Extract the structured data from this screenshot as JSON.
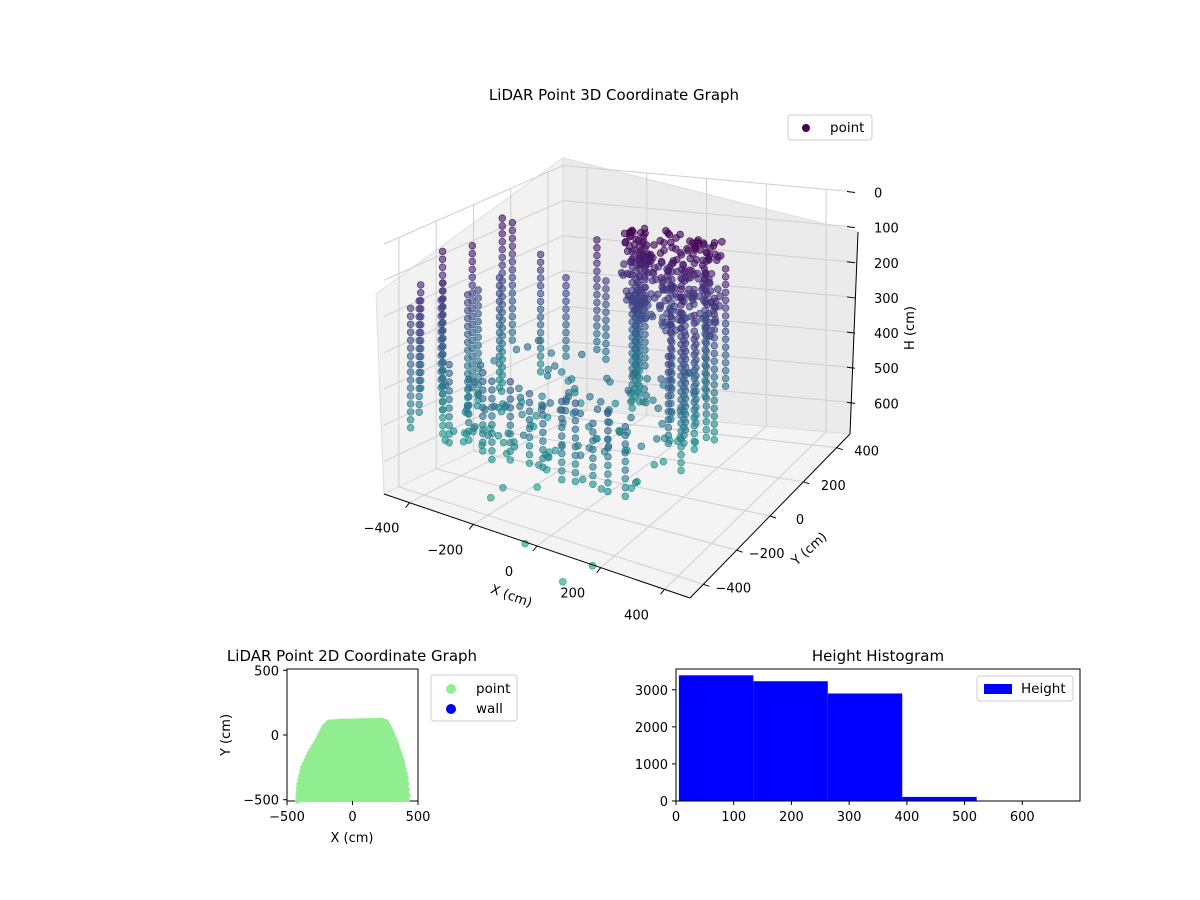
{
  "figure": {
    "background": "#ffffff"
  },
  "chart_data": [
    {
      "type": "scatter",
      "projection": "3d",
      "title": "LiDAR Point 3D Coordinate Graph",
      "xlabel": "X (cm)",
      "ylabel": "Y (cm)",
      "zlabel": "H (cm)",
      "xticks": [
        "−400",
        "−200",
        "0",
        "200",
        "400"
      ],
      "yticks": [
        "−400",
        "−200",
        "0",
        "200",
        "400"
      ],
      "zticks": [
        "0",
        "100",
        "200",
        "300",
        "400",
        "500",
        "600"
      ],
      "xlim": [
        -480,
        480
      ],
      "ylim": [
        -480,
        480
      ],
      "zlim": [
        690,
        0
      ],
      "z_inverted": true,
      "grid": true,
      "colormap": "viridis",
      "series": [
        {
          "name": "point",
          "marker_color": "#440154",
          "description_values": {
            "wall_x_range": [
              -420,
              300
            ],
            "wall_y_range": [
              -480,
              110
            ],
            "height_range": [
              0,
              520
            ],
            "samples": [
              {
                "x": -410,
                "y": -100,
                "h": 80
              },
              {
                "x": -400,
                "y": -300,
                "h": 250
              },
              {
                "x": -300,
                "y": 100,
                "h": 100
              },
              {
                "x": -100,
                "y": 105,
                "h": 20
              },
              {
                "x": 100,
                "y": 100,
                "h": 10
              },
              {
                "x": 250,
                "y": 60,
                "h": 60
              },
              {
                "x": 280,
                "y": -50,
                "h": 150
              },
              {
                "x": 0,
                "y": -470,
                "h": 300
              },
              {
                "x": -150,
                "y": -460,
                "h": 400
              },
              {
                "x": 200,
                "y": -400,
                "h": 450
              }
            ]
          }
        }
      ],
      "legend": {
        "position": "upper right",
        "entries": [
          "point"
        ]
      }
    },
    {
      "type": "scatter",
      "title": "LiDAR Point 2D Coordinate Graph",
      "xlabel": "X (cm)",
      "ylabel": "Y (cm)",
      "xlim": [
        -500,
        500
      ],
      "ylim": [
        -510,
        510
      ],
      "xticks": [
        "−500",
        "0",
        "500"
      ],
      "yticks": [
        "−500",
        "0",
        "500"
      ],
      "series": [
        {
          "name": "point",
          "color": "#90ee90",
          "outline": [
            [
              -420,
              -510
            ],
            [
              -410,
              -380
            ],
            [
              -380,
              -250
            ],
            [
              -330,
              -140
            ],
            [
              -270,
              -40
            ],
            [
              -220,
              60
            ],
            [
              -180,
              100
            ],
            [
              -80,
              108
            ],
            [
              40,
              110
            ],
            [
              140,
              112
            ],
            [
              220,
              115
            ],
            [
              260,
              100
            ],
            [
              300,
              20
            ],
            [
              340,
              -80
            ],
            [
              380,
              -200
            ],
            [
              410,
              -330
            ],
            [
              430,
              -510
            ]
          ]
        },
        {
          "name": "wall",
          "color": "#0000ff",
          "points": []
        }
      ],
      "legend": {
        "position": "outside right",
        "entries": [
          "point",
          "wall"
        ]
      }
    },
    {
      "type": "bar",
      "title": "Height Histogram",
      "xlim": [
        0,
        700
      ],
      "ylim": [
        0,
        3560
      ],
      "xticks": [
        "0",
        "100",
        "200",
        "300",
        "400",
        "500",
        "600"
      ],
      "yticks": [
        "0",
        "1000",
        "2000",
        "3000"
      ],
      "series": [
        {
          "name": "Height",
          "color": "#0000ff",
          "bins": [
            {
              "start": 5,
              "end": 134,
              "count": 3390
            },
            {
              "start": 134,
              "end": 263,
              "count": 3230
            },
            {
              "start": 263,
              "end": 392,
              "count": 2900
            },
            {
              "start": 392,
              "end": 521,
              "count": 110
            },
            {
              "start": 521,
              "end": 650,
              "count": 0
            }
          ]
        }
      ],
      "legend": {
        "position": "upper right",
        "entries": [
          "Height"
        ]
      }
    }
  ]
}
